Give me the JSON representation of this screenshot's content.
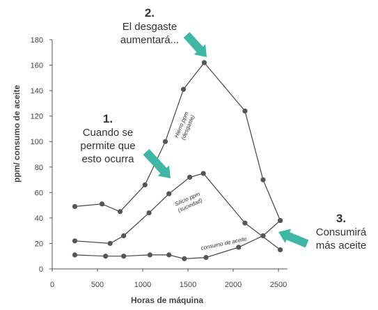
{
  "chart_data": {
    "type": "line",
    "xlabel": "Horas de máquina",
    "ylabel": "ppm/ consumo de aceite",
    "xlim": [
      0,
      2600
    ],
    "ylim": [
      0,
      180
    ],
    "x_ticks": [
      0,
      500,
      1000,
      1500,
      2000,
      2500
    ],
    "y_ticks": [
      0,
      20,
      40,
      60,
      80,
      100,
      120,
      140,
      160,
      180
    ],
    "grid": false,
    "legend": "none",
    "series": [
      {
        "key": "hierro",
        "label_lines": [
          "Hierro ppm",
          "(desgaste)"
        ],
        "points": [
          [
            250,
            49
          ],
          [
            550,
            51
          ],
          [
            750,
            45
          ],
          [
            1025,
            66
          ],
          [
            1250,
            100
          ],
          [
            1450,
            141
          ],
          [
            1680,
            162
          ],
          [
            2130,
            124
          ],
          [
            2330,
            70
          ],
          [
            2520,
            38
          ]
        ]
      },
      {
        "key": "silicio",
        "label_lines": [
          "Silicio ppm",
          "(suciedad)"
        ],
        "points": [
          [
            250,
            22
          ],
          [
            640,
            20
          ],
          [
            790,
            26
          ],
          [
            1070,
            44
          ],
          [
            1290,
            59
          ],
          [
            1520,
            72
          ],
          [
            1670,
            75
          ],
          [
            2130,
            36
          ],
          [
            2520,
            15
          ]
        ]
      },
      {
        "key": "consumo",
        "label_lines": [
          "consumo de aceite"
        ],
        "points": [
          [
            250,
            11
          ],
          [
            590,
            10
          ],
          [
            790,
            10
          ],
          [
            1080,
            11
          ],
          [
            1290,
            11
          ],
          [
            1460,
            8
          ],
          [
            1700,
            9
          ],
          [
            2060,
            17
          ],
          [
            2330,
            26
          ],
          [
            2520,
            38
          ]
        ]
      }
    ],
    "annotations": [
      {
        "key": "a1",
        "number": "1.",
        "lines": [
          "Cuando se",
          "permite que",
          "esto ocurra"
        ]
      },
      {
        "key": "a2",
        "number": "2.",
        "lines": [
          "El desgaste",
          "aumentará..."
        ]
      },
      {
        "key": "a3",
        "number": "3.",
        "lines": [
          "Consumirá",
          "más aceite"
        ]
      }
    ]
  },
  "colors": {
    "line": "#444444",
    "marker": "#555555",
    "arrow": "#3fb7a5",
    "axis": "#555555"
  }
}
